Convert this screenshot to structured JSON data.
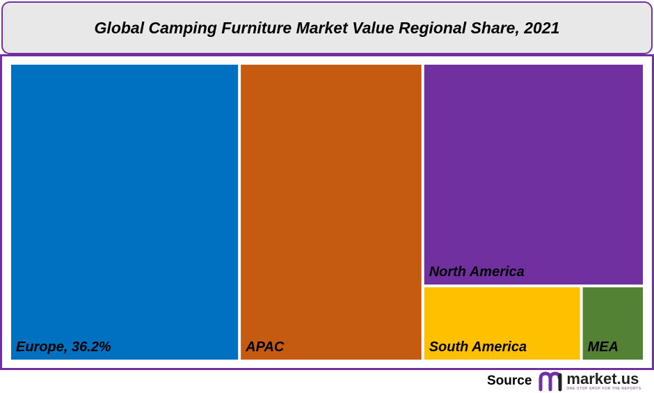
{
  "chart_data": {
    "type": "treemap",
    "title": "Global Camping Furniture Market Value Regional Share, 2021",
    "tiles": [
      {
        "name": "Europe",
        "label": "Europe, 36.2%",
        "value": 36.2,
        "color": "#0070c0"
      },
      {
        "name": "APAC",
        "label": "APAC",
        "value": 28.9,
        "color": "#c55a11"
      },
      {
        "name": "North America",
        "label": "North America",
        "value": 26.1,
        "color": "#7030a0"
      },
      {
        "name": "South America",
        "label": "South America",
        "value": 6.3,
        "color": "#ffc000"
      },
      {
        "name": "MEA",
        "label": "MEA",
        "value": 2.5,
        "color": "#548235"
      }
    ]
  },
  "source": {
    "label": "Source",
    "logo_name": "market.us",
    "logo_tagline": "ONE STOP SHOP FOR THE REPORTS",
    "logo_color": "#7030a0"
  }
}
